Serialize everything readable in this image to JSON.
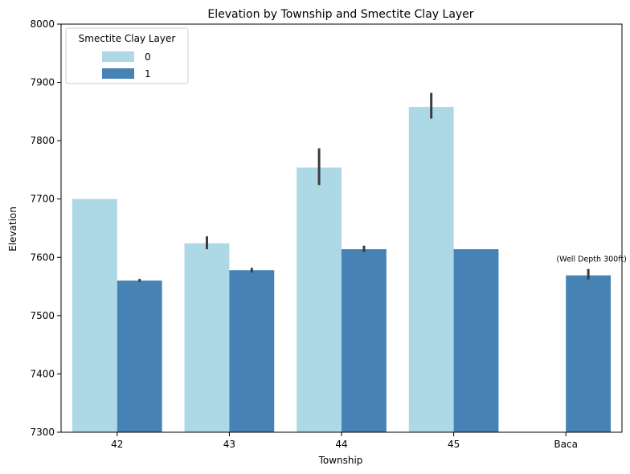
{
  "chart_data": {
    "type": "bar",
    "title": "Elevation by Township and Smectite Clay Layer",
    "xlabel": "Township",
    "ylabel": "Elevation",
    "categories": [
      "42",
      "43",
      "44",
      "45",
      "Baca"
    ],
    "ylim": [
      7300,
      8000
    ],
    "yticks": [
      7300,
      7400,
      7500,
      7600,
      7700,
      7800,
      7900,
      8000
    ],
    "grid": false,
    "legend": {
      "title": "Smectite Clay Layer",
      "placement": "top-left"
    },
    "series": [
      {
        "name": "0",
        "color": "#add8e6",
        "values": [
          7700,
          7624,
          7754,
          7858,
          null
        ],
        "errors": [
          null,
          [
            7614,
            7636
          ],
          [
            7724,
            7787
          ],
          [
            7838,
            7882
          ],
          null
        ]
      },
      {
        "name": "1",
        "color": "#4682b4",
        "values": [
          7560,
          7578,
          7614,
          7614,
          7569
        ],
        "errors": [
          [
            7558,
            7563
          ],
          [
            7574,
            7582
          ],
          [
            7609,
            7620
          ],
          null,
          [
            7562,
            7580
          ]
        ]
      }
    ],
    "annotations": [
      {
        "category": "Baca",
        "y": 7597,
        "text": "(Well Depth 300ft)"
      }
    ]
  }
}
